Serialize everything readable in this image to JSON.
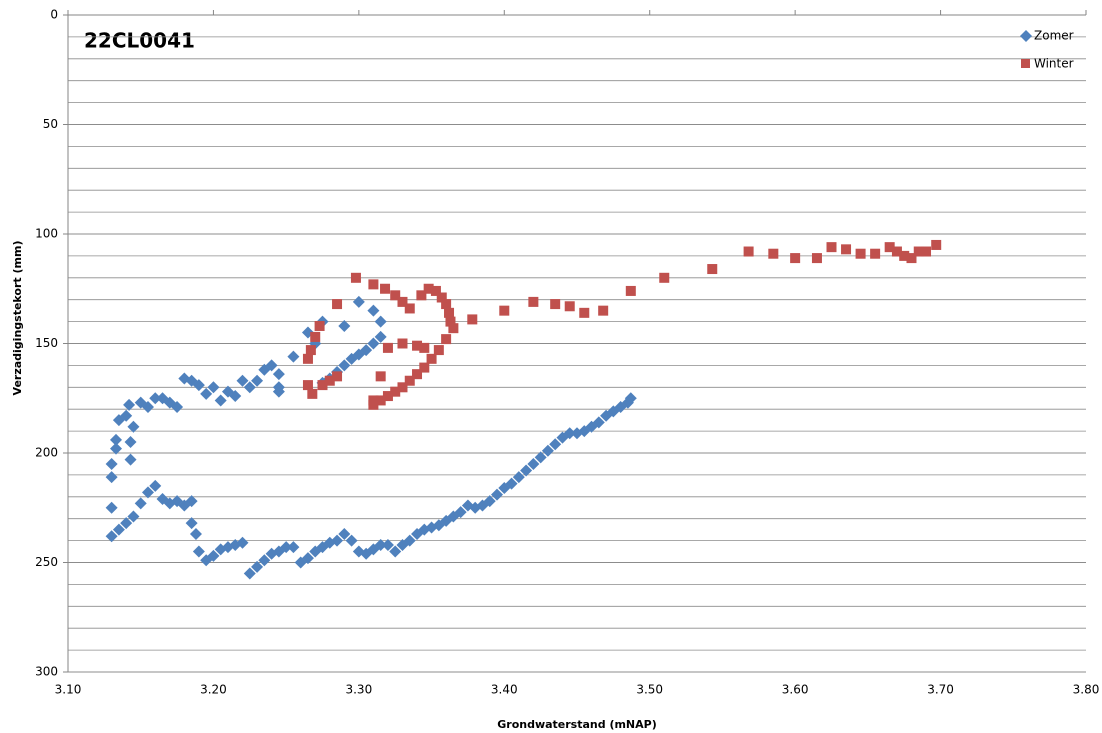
{
  "chart_data": {
    "type": "scatter",
    "title": "22CL0041",
    "x_label": "Grondwaterstand (mNAP)",
    "y_label": "Verzadigingstekort (mm)",
    "xlim": [
      3.1,
      3.8
    ],
    "xticks": [
      {
        "value": 3.1,
        "label": "3.10"
      },
      {
        "value": 3.2,
        "label": "3.20"
      },
      {
        "value": 3.3,
        "label": "3.30"
      },
      {
        "value": 3.4,
        "label": "3.40"
      },
      {
        "value": 3.5,
        "label": "3.50"
      },
      {
        "value": 3.6,
        "label": "3.60"
      },
      {
        "value": 3.7,
        "label": "3.70"
      },
      {
        "value": 3.8,
        "label": "3.80"
      }
    ],
    "ylim": [
      0,
      300
    ],
    "yticks": [
      0,
      50,
      100,
      150,
      200,
      250,
      300
    ],
    "y_reversed": true,
    "grid": true,
    "legend": "top-right",
    "series": [
      {
        "name": "Zomer",
        "color": "#4f81bd",
        "marker": "diamond",
        "x": [
          3.487,
          3.485,
          3.48,
          3.475,
          3.47,
          3.465,
          3.46,
          3.455,
          3.45,
          3.445,
          3.44,
          3.435,
          3.43,
          3.425,
          3.42,
          3.415,
          3.41,
          3.405,
          3.4,
          3.395,
          3.39,
          3.385,
          3.38,
          3.375,
          3.37,
          3.365,
          3.36,
          3.355,
          3.35,
          3.345,
          3.34,
          3.335,
          3.33,
          3.325,
          3.32,
          3.315,
          3.31,
          3.305,
          3.3,
          3.295,
          3.29,
          3.285,
          3.28,
          3.275,
          3.27,
          3.265,
          3.26,
          3.255,
          3.25,
          3.245,
          3.24,
          3.235,
          3.23,
          3.225,
          3.22,
          3.215,
          3.21,
          3.205,
          3.2,
          3.195,
          3.19,
          3.188,
          3.185,
          3.185,
          3.18,
          3.175,
          3.17,
          3.165,
          3.16,
          3.155,
          3.15,
          3.145,
          3.14,
          3.135,
          3.13,
          3.13,
          3.13,
          3.13,
          3.133,
          3.133,
          3.135,
          3.14,
          3.142,
          3.145,
          3.143,
          3.143,
          3.15,
          3.155,
          3.16,
          3.165,
          3.17,
          3.175,
          3.18,
          3.185,
          3.19,
          3.195,
          3.2,
          3.205,
          3.21,
          3.215,
          3.22,
          3.225,
          3.23,
          3.235,
          3.24,
          3.245,
          3.245,
          3.245,
          3.255,
          3.265,
          3.27,
          3.275,
          3.29,
          3.3,
          3.31,
          3.315,
          3.315,
          3.31,
          3.305,
          3.3,
          3.295,
          3.29,
          3.285,
          3.28,
          3.275
        ],
        "values": [
          175,
          177,
          179,
          181,
          183,
          186,
          188,
          190,
          191,
          191,
          193,
          196,
          199,
          202,
          205,
          208,
          211,
          214,
          216,
          219,
          222,
          224,
          225,
          224,
          227,
          229,
          231,
          233,
          234,
          235,
          237,
          240,
          242,
          245,
          242,
          242,
          244,
          246,
          245,
          240,
          237,
          240,
          241,
          243,
          245,
          248,
          250,
          243,
          243,
          245,
          246,
          249,
          252,
          255,
          241,
          242,
          243,
          244,
          247,
          249,
          245,
          237,
          232,
          222,
          224,
          222,
          223,
          221,
          215,
          218,
          223,
          229,
          232,
          235,
          238,
          225,
          211,
          205,
          198,
          194,
          185,
          183,
          178,
          188,
          195,
          203,
          177,
          179,
          175,
          175,
          177,
          179,
          166,
          167,
          169,
          173,
          170,
          176,
          172,
          174,
          167,
          170,
          167,
          162,
          160,
          164,
          170,
          172,
          156,
          145,
          150,
          140,
          142,
          131,
          135,
          140,
          147,
          150,
          153,
          155,
          157,
          160,
          163,
          166,
          168
        ]
      },
      {
        "name": "Winter",
        "color": "#c0504d",
        "marker": "square",
        "x": [
          3.697,
          3.69,
          3.685,
          3.68,
          3.675,
          3.67,
          3.665,
          3.655,
          3.645,
          3.635,
          3.625,
          3.615,
          3.6,
          3.585,
          3.568,
          3.543,
          3.51,
          3.487,
          3.468,
          3.455,
          3.445,
          3.435,
          3.42,
          3.4,
          3.378,
          3.363,
          3.362,
          3.36,
          3.357,
          3.353,
          3.348,
          3.343,
          3.335,
          3.33,
          3.325,
          3.318,
          3.31,
          3.298,
          3.285,
          3.273,
          3.27,
          3.267,
          3.265,
          3.265,
          3.268,
          3.275,
          3.28,
          3.285,
          3.315,
          3.32,
          3.33,
          3.34,
          3.345,
          3.365,
          3.36,
          3.355,
          3.35,
          3.345,
          3.34,
          3.335,
          3.33,
          3.325,
          3.32,
          3.315,
          3.31,
          3.31
        ],
        "values": [
          105,
          108,
          108,
          111,
          110,
          108,
          106,
          109,
          109,
          107,
          106,
          111,
          111,
          109,
          108,
          116,
          120,
          126,
          135,
          136,
          133,
          132,
          131,
          135,
          139,
          140,
          136,
          132,
          129,
          126,
          125,
          128,
          134,
          131,
          128,
          125,
          123,
          120,
          132,
          142,
          147,
          153,
          157,
          169,
          173,
          169,
          167,
          165,
          165,
          152,
          150,
          151,
          152,
          143,
          148,
          153,
          157,
          161,
          164,
          167,
          170,
          172,
          174,
          176,
          178,
          176
        ]
      }
    ]
  }
}
